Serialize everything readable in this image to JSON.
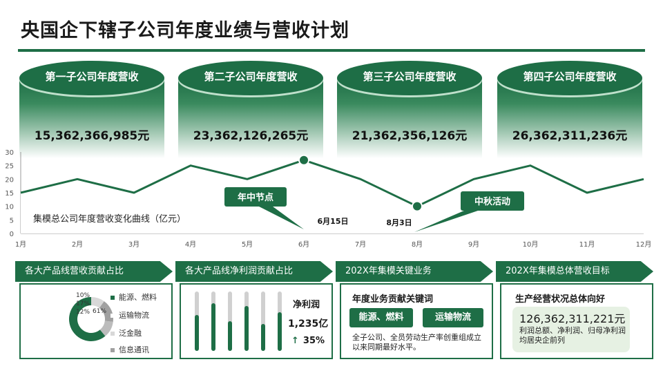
{
  "title": "央国企下辖子公司年度业绩与营收计划",
  "colors": {
    "primary": "#1e6e46",
    "light": "#e6f1e3"
  },
  "cylinders": [
    {
      "label": "第一子公司年度营收",
      "value": "15,362,366,985元"
    },
    {
      "label": "第二子公司年度营收",
      "value": "23,362,126,265元"
    },
    {
      "label": "第三子公司年度营收",
      "value": "21,362,356,126元"
    },
    {
      "label": "第四子公司年度营收",
      "value": "26,362,311,236元"
    }
  ],
  "chart_data": {
    "type": "line",
    "title": "集模总公司年度营收变化曲线（亿元）",
    "categories": [
      "1月",
      "2月",
      "3月",
      "4月",
      "5月",
      "6月",
      "7月",
      "8月",
      "9月",
      "10月",
      "11月",
      "12月"
    ],
    "series": [
      {
        "values": [
          15,
          20,
          15,
          25,
          20,
          27,
          20,
          10,
          20,
          25,
          15,
          20
        ]
      }
    ],
    "yticks": [
      "0",
      "5",
      "10",
      "15",
      "20",
      "25",
      "30"
    ],
    "ylim": [
      0,
      30
    ],
    "callouts": [
      {
        "label": "年中节点",
        "date": "6月15日",
        "month_index": 5
      },
      {
        "label": "中秋活动",
        "date": "8月3日",
        "month_index": 7
      }
    ]
  },
  "panels": {
    "p1": {
      "title": "各大产品线营收贡献占比",
      "donut": [
        {
          "pct": "10%",
          "value": 10
        },
        {
          "pct": "17%",
          "value": 17
        },
        {
          "pct": "12%",
          "value": 12
        },
        {
          "pct": "61%",
          "value": 61
        }
      ],
      "legend": [
        "能源、燃料",
        "运输物流",
        "泛金融",
        "信息通讯"
      ]
    },
    "p2": {
      "title": "各大产品线净利润贡献占比",
      "bars": [
        0.6,
        0.8,
        0.5,
        0.75,
        0.45,
        0.65
      ],
      "label": "净利润",
      "value": "1,235亿",
      "growth": "35%",
      "arrow": "arrow-up-icon"
    },
    "p3": {
      "title": "202X年集模关键业务",
      "heading": "年度业务贡献关键词",
      "tags": [
        "能源、燃料",
        "运输物流"
      ],
      "text": "全子公司、全员劳动生产率创重组成立以来同期最好水平。"
    },
    "p4": {
      "title": "202X年集模总体营收目标",
      "heading": "生产经营状况总体向好",
      "value": "126,362,311,221元",
      "text": "利润总额、净利润、归母净利润均居央企前列"
    }
  }
}
